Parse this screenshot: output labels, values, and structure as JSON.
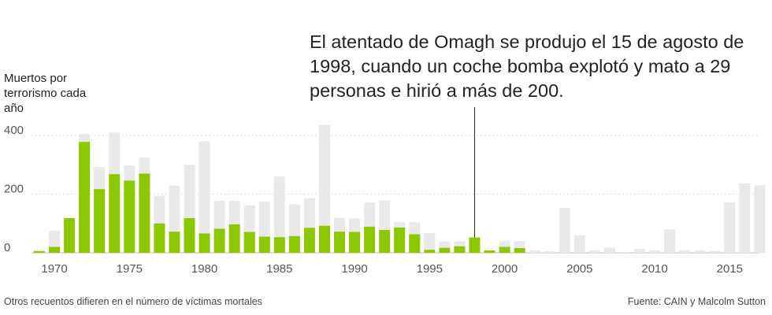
{
  "chart_data": {
    "type": "bar",
    "ylabel": "Muertos por terrorismo cada año",
    "ylim": [
      0,
      450
    ],
    "yticks": [
      0,
      200,
      400
    ],
    "xticks": [
      1970,
      1975,
      1980,
      1985,
      1990,
      1995,
      2000,
      2005,
      2010,
      2015
    ],
    "grid": true,
    "years": [
      1969,
      1970,
      1971,
      1972,
      1973,
      1974,
      1975,
      1976,
      1977,
      1978,
      1979,
      1980,
      1981,
      1982,
      1983,
      1984,
      1985,
      1986,
      1987,
      1988,
      1989,
      1990,
      1991,
      1992,
      1993,
      1994,
      1995,
      1996,
      1997,
      1998,
      1999,
      2000,
      2001,
      2002,
      2003,
      2004,
      2005,
      2006,
      2007,
      2008,
      2009,
      2010,
      2011,
      2012,
      2013,
      2014,
      2015,
      2016,
      2017
    ],
    "series": [
      {
        "values": [
          0,
          75,
          0,
          405,
          292,
          410,
          298,
          325,
          194,
          229,
          300,
          380,
          177,
          177,
          162,
          175,
          260,
          165,
          186,
          436,
          119,
          117,
          172,
          178,
          105,
          105,
          67,
          38,
          38,
          0,
          0,
          40,
          40,
          8,
          5,
          153,
          60,
          8,
          18,
          3,
          13,
          8,
          80,
          9,
          8,
          6,
          172,
          237,
          230
        ],
        "color": "#e9e9e9"
      },
      {
        "values": [
          6,
          20,
          118,
          378,
          217,
          268,
          246,
          270,
          100,
          72,
          118,
          66,
          82,
          97,
          71,
          55,
          53,
          57,
          85,
          92,
          72,
          71,
          89,
          78,
          86,
          63,
          10,
          17,
          22,
          52,
          8,
          20,
          16,
          0,
          0,
          0,
          0,
          0,
          0,
          0,
          0,
          0,
          0,
          0,
          0,
          0,
          0,
          0,
          0
        ],
        "color": "#8cc800"
      }
    ]
  },
  "annotation": {
    "text": "El atentado de Omagh se produjo el 15 de agosto de 1998, cuando un coche bomba explotó y mato a 29 personas e hirió a más de 200.",
    "year": 1998
  },
  "y_title": "Muertos por terrorismo cada año",
  "footnote": "Otros recuentos difieren en el número de víctimas mortales",
  "source": "Fuente: CAIN y Malcolm Sutton"
}
